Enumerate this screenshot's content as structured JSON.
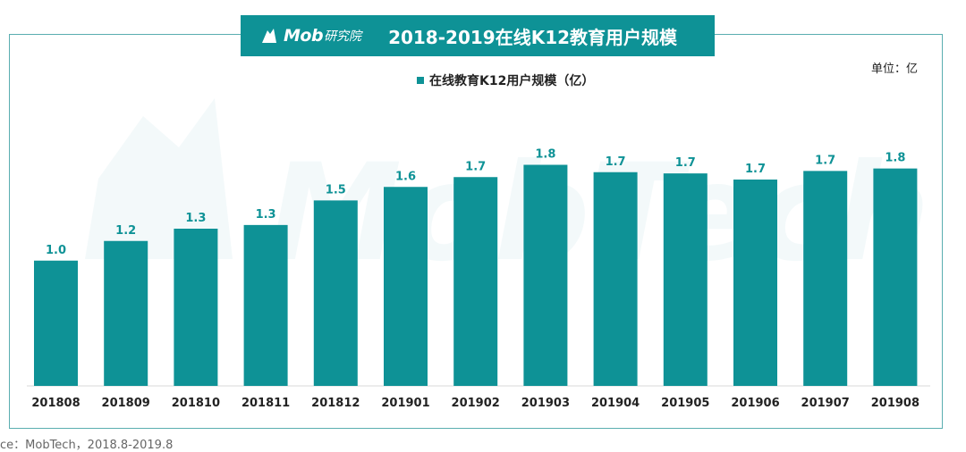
{
  "header": {
    "brand": "Mob",
    "brand_sub": "研究院",
    "title": "2018-2019在线K12教育用户规模"
  },
  "unit_label": "单位：亿",
  "legend_label": "在线教育K12用户规模（亿）",
  "source": "ce：MobTech，2018.8-2019.8",
  "colors": {
    "bar": "#0e9296",
    "label": "#0e9296",
    "frame": "#5aaeb0"
  },
  "chart_data": {
    "type": "bar",
    "title": "2018-2019在线K12教育用户规模",
    "categories": [
      "201808",
      "201809",
      "201810",
      "201811",
      "201812",
      "201901",
      "201902",
      "201903",
      "201904",
      "201905",
      "201906",
      "201907",
      "201908"
    ],
    "series": [
      {
        "name": "在线教育K12用户规模（亿）",
        "values": [
          1.0,
          1.2,
          1.3,
          1.3,
          1.5,
          1.6,
          1.7,
          1.8,
          1.7,
          1.7,
          1.7,
          1.7,
          1.8
        ],
        "actual": [
          1.02,
          1.18,
          1.28,
          1.31,
          1.51,
          1.62,
          1.7,
          1.8,
          1.74,
          1.73,
          1.68,
          1.75,
          1.77
        ]
      }
    ],
    "data_labels": [
      "1.0",
      "1.2",
      "1.3",
      "1.3",
      "1.5",
      "1.6",
      "1.7",
      "1.8",
      "1.7",
      "1.7",
      "1.7",
      "1.7",
      "1.8"
    ],
    "ylim": [
      0,
      2.4
    ],
    "grid": false,
    "legend_position": "top-center"
  }
}
